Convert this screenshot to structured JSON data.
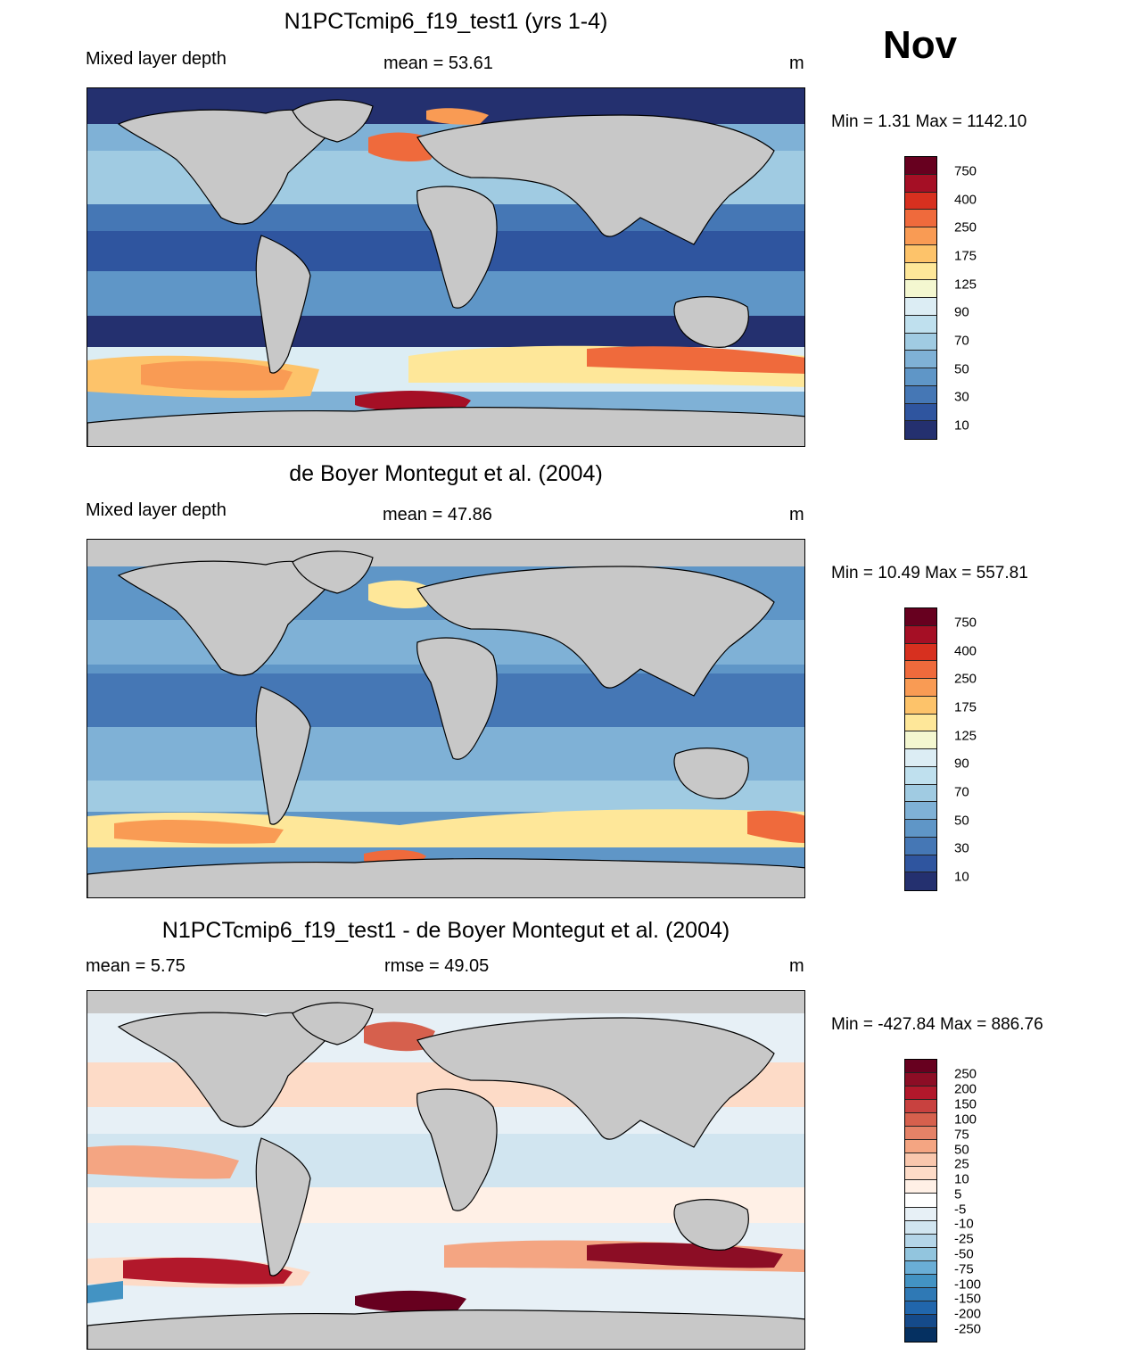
{
  "month": "Nov",
  "panels": [
    {
      "title": "N1PCTcmip6_f19_test1 (yrs 1-4)",
      "left_label": "Mixed layer depth",
      "center_label": "mean =  53.61",
      "units": "m",
      "minmax": "Min =   1.31 Max = 1142.10",
      "colorbar": {
        "labels": [
          "750",
          "400",
          "250",
          "175",
          "125",
          "90",
          "70",
          "50",
          "30",
          "10"
        ],
        "colors": [
          "#67001f",
          "#a50f25",
          "#d7301f",
          "#ef6a3c",
          "#f99b54",
          "#fdc36a",
          "#fee799",
          "#f4f7d0",
          "#dcedf4",
          "#bfe0ee",
          "#a0cbe2",
          "#7fb1d6",
          "#5f96c7",
          "#4577b5",
          "#2f559f",
          "#24306f"
        ]
      }
    },
    {
      "title": "de Boyer Montegut et al. (2004)",
      "left_label": "Mixed layer depth",
      "center_label": "mean =  47.86",
      "units": "m",
      "minmax": "Min =  10.49 Max = 557.81",
      "colorbar": {
        "labels": [
          "750",
          "400",
          "250",
          "175",
          "125",
          "90",
          "70",
          "50",
          "30",
          "10"
        ],
        "colors": [
          "#67001f",
          "#a50f25",
          "#d7301f",
          "#ef6a3c",
          "#f99b54",
          "#fdc36a",
          "#fee799",
          "#f4f7d0",
          "#dcedf4",
          "#bfe0ee",
          "#a0cbe2",
          "#7fb1d6",
          "#5f96c7",
          "#4577b5",
          "#2f559f",
          "#24306f"
        ]
      }
    },
    {
      "title": "N1PCTcmip6_f19_test1 - de Boyer Montegut et al. (2004)",
      "left_label": "mean =   5.75",
      "center_label": "rmse =  49.05",
      "units": "m",
      "minmax": "Min = -427.84 Max = 886.76",
      "colorbar": {
        "labels": [
          "250",
          "200",
          "150",
          "100",
          "75",
          "50",
          "25",
          "10",
          "5",
          "-5",
          "-10",
          "-25",
          "-50",
          "-75",
          "-100",
          "-150",
          "-200",
          "-250"
        ],
        "colors": [
          "#67001f",
          "#8c0d25",
          "#b2182b",
          "#c8413f",
          "#d6604d",
          "#e58267",
          "#f4a582",
          "#f9c7ad",
          "#fddbc7",
          "#fff0e6",
          "#ffffff",
          "#e7f0f6",
          "#d1e5f0",
          "#b4d5e8",
          "#92c5de",
          "#6aaed6",
          "#4393c3",
          "#2f79b5",
          "#2166ac",
          "#154a8a",
          "#053061"
        ]
      }
    }
  ]
}
